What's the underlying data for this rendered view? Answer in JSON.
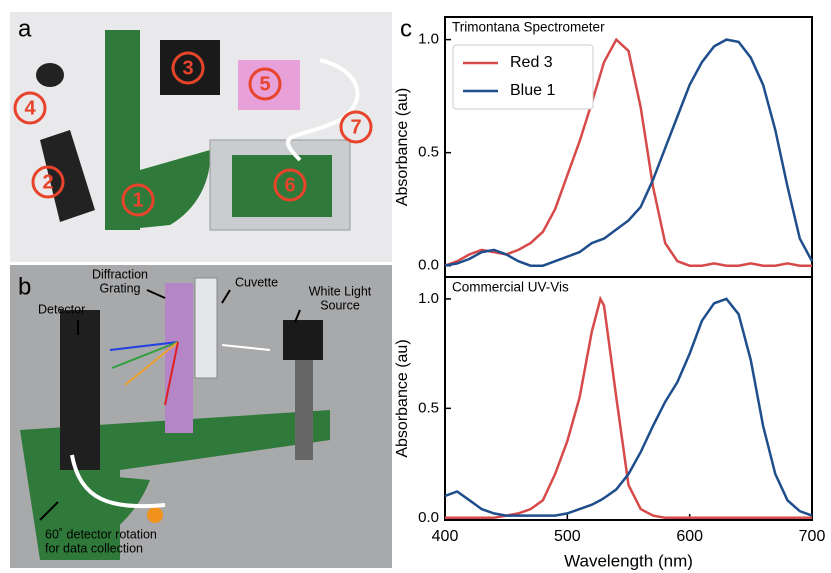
{
  "panel_labels": [
    "a",
    "b",
    "c"
  ],
  "photo_a": {
    "labels": [
      "1",
      "2",
      "3",
      "4",
      "5",
      "6",
      "7"
    ]
  },
  "photo_b": {
    "annotations": [
      {
        "lines": [
          "Diffraction",
          "Grating"
        ]
      },
      {
        "lines": [
          "Cuvette"
        ]
      },
      {
        "lines": [
          "Detector"
        ]
      },
      {
        "lines": [
          "White Light",
          "Source"
        ]
      },
      {
        "lines": [
          "60˚ detector rotation",
          "for data collection"
        ]
      }
    ]
  },
  "chart_data": [
    {
      "type": "line",
      "title": "Trimontana Spectrometer",
      "ylabel": "Absorbance (au)",
      "x": [
        400,
        410,
        420,
        430,
        440,
        450,
        460,
        470,
        480,
        490,
        500,
        510,
        520,
        530,
        540,
        550,
        560,
        570,
        580,
        590,
        600,
        610,
        620,
        630,
        640,
        650,
        660,
        670,
        680,
        690,
        700
      ],
      "series": [
        {
          "name": "Red 3",
          "color": "#d64a4a",
          "values": [
            0.0,
            0.02,
            0.05,
            0.07,
            0.06,
            0.05,
            0.07,
            0.1,
            0.15,
            0.25,
            0.4,
            0.55,
            0.72,
            0.9,
            1.0,
            0.95,
            0.7,
            0.35,
            0.1,
            0.02,
            0.0,
            0.0,
            0.01,
            0.0,
            0.0,
            0.01,
            0.0,
            0.0,
            0.01,
            0.0,
            0.0
          ]
        },
        {
          "name": "Blue 1",
          "color": "#1f4e8c",
          "values": [
            0.0,
            0.01,
            0.03,
            0.06,
            0.07,
            0.05,
            0.02,
            0.0,
            0.0,
            0.02,
            0.04,
            0.06,
            0.1,
            0.12,
            0.16,
            0.2,
            0.26,
            0.38,
            0.52,
            0.66,
            0.8,
            0.9,
            0.97,
            1.0,
            0.99,
            0.92,
            0.8,
            0.6,
            0.35,
            0.12,
            0.02
          ]
        }
      ],
      "xlim": [
        400,
        700
      ],
      "ylim": [
        -0.05,
        1.1
      ],
      "yticks": [
        {
          "value": 0,
          "label": "0.0"
        },
        0.5,
        {
          "value": 1,
          "label": "1.0"
        }
      ],
      "legend": "upper left"
    },
    {
      "type": "line",
      "title": "Commercial UV-Vis",
      "ylabel": "Absorbance (au)",
      "xlabel": "Wavelength (nm)",
      "x": [
        400,
        410,
        420,
        430,
        440,
        450,
        460,
        470,
        480,
        490,
        500,
        510,
        520,
        527,
        530,
        540,
        550,
        560,
        570,
        580,
        590,
        600,
        610,
        620,
        630,
        640,
        650,
        660,
        670,
        680,
        690,
        700
      ],
      "series": [
        {
          "name": "Red 3",
          "color": "#d64a4a",
          "values": [
            0.0,
            0.0,
            0.0,
            0.0,
            0.0,
            0.01,
            0.02,
            0.04,
            0.08,
            0.2,
            0.35,
            0.55,
            0.85,
            1.0,
            0.97,
            0.55,
            0.15,
            0.04,
            0.01,
            0.0,
            0.0,
            0.0,
            0.0,
            0.0,
            0.0,
            0.0,
            0.0,
            0.0,
            0.0,
            0.0,
            0.0,
            0.0
          ]
        },
        {
          "name": "Blue 1",
          "color": "#1f4e8c",
          "values": [
            0.1,
            0.12,
            0.08,
            0.04,
            0.02,
            0.01,
            0.01,
            0.01,
            0.01,
            0.01,
            0.02,
            0.04,
            0.06,
            0.08,
            0.09,
            0.13,
            0.2,
            0.3,
            0.42,
            0.53,
            0.62,
            0.75,
            0.9,
            0.98,
            1.0,
            0.93,
            0.72,
            0.42,
            0.2,
            0.08,
            0.03,
            0.01
          ]
        }
      ],
      "xlim": [
        400,
        700
      ],
      "ylim": [
        -0.01,
        1.1
      ],
      "xticks": [
        400,
        500,
        600,
        700
      ],
      "yticks": [
        {
          "value": 0,
          "label": "0.0"
        },
        0.5,
        {
          "value": 1,
          "label": "1.0"
        }
      ]
    }
  ]
}
